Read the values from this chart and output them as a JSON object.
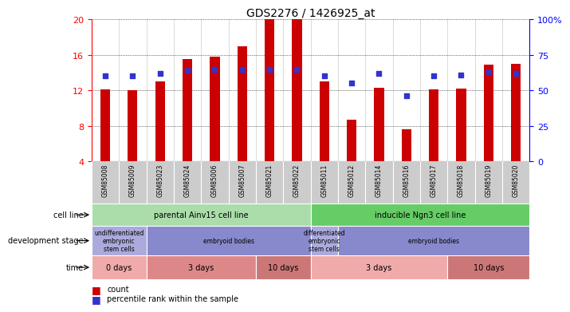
{
  "title": "GDS2276 / 1426925_at",
  "samples": [
    "GSM85008",
    "GSM85009",
    "GSM85023",
    "GSM85024",
    "GSM85006",
    "GSM85007",
    "GSM85021",
    "GSM85022",
    "GSM85011",
    "GSM85012",
    "GSM85014",
    "GSM85016",
    "GSM85017",
    "GSM85018",
    "GSM85019",
    "GSM85020"
  ],
  "counts": [
    12.1,
    12.0,
    13.0,
    15.5,
    15.8,
    17.0,
    20.0,
    20.0,
    13.0,
    8.7,
    12.3,
    7.6,
    12.1,
    12.2,
    14.9,
    15.0
  ],
  "percentiles": [
    60,
    60,
    62,
    64,
    65,
    65,
    65,
    65,
    60,
    55,
    62,
    46,
    60,
    61,
    63,
    62
  ],
  "bar_color": "#cc0000",
  "dot_color": "#3333cc",
  "ylim_left": [
    4,
    20
  ],
  "ylim_right": [
    0,
    100
  ],
  "yticks_left": [
    4,
    8,
    12,
    16,
    20
  ],
  "yticks_right": [
    0,
    25,
    50,
    75,
    100
  ],
  "cell_line_groups": [
    {
      "label": "parental Ainv15 cell line",
      "start": 0,
      "end": 8,
      "color": "#aaddaa"
    },
    {
      "label": "inducible Ngn3 cell line",
      "start": 8,
      "end": 16,
      "color": "#66cc66"
    }
  ],
  "dev_stage_groups": [
    {
      "label": "undifferentiated\nembryonic\nstem cells",
      "start": 0,
      "end": 2,
      "color": "#aaaadd"
    },
    {
      "label": "embryoid bodies",
      "start": 2,
      "end": 8,
      "color": "#8888cc"
    },
    {
      "label": "differentiated\nembryonic\nstem cells",
      "start": 8,
      "end": 9,
      "color": "#aaaadd"
    },
    {
      "label": "embryoid bodies",
      "start": 9,
      "end": 16,
      "color": "#8888cc"
    }
  ],
  "time_groups": [
    {
      "label": "0 days",
      "start": 0,
      "end": 2,
      "color": "#f0aaaa"
    },
    {
      "label": "3 days",
      "start": 2,
      "end": 6,
      "color": "#dd8888"
    },
    {
      "label": "10 days",
      "start": 6,
      "end": 8,
      "color": "#cc7777"
    },
    {
      "label": "3 days",
      "start": 8,
      "end": 13,
      "color": "#f0aaaa"
    },
    {
      "label": "10 days",
      "start": 13,
      "end": 16,
      "color": "#cc7777"
    }
  ]
}
